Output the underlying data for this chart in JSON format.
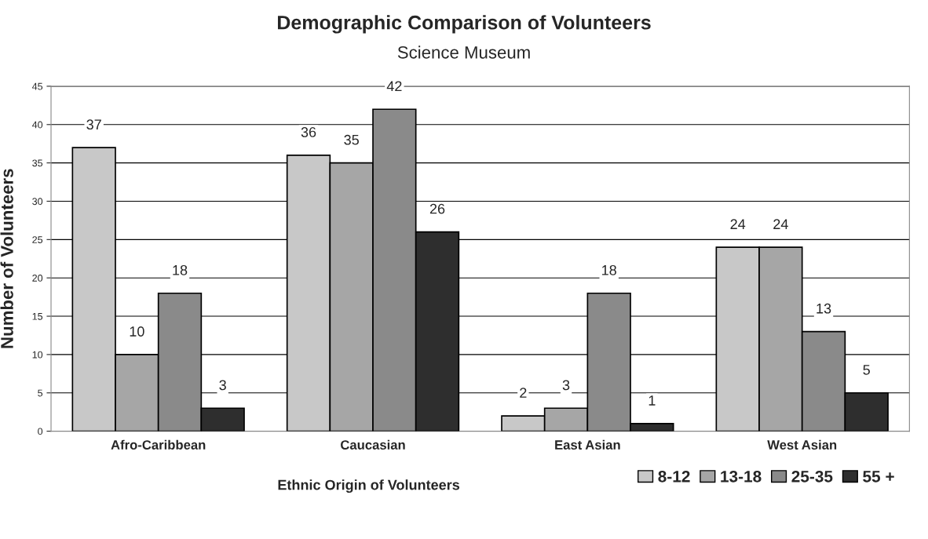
{
  "chart_data": {
    "type": "bar",
    "title": "Demographic Comparison of Volunteers",
    "subtitle": "Science Museum",
    "xlabel": "Ethnic Origin of Volunteers",
    "ylabel": "Number of Volunteers",
    "categories": [
      "Afro-Caribbean",
      "Caucasian",
      "East Asian",
      "West Asian"
    ],
    "series": [
      {
        "name": "8-12",
        "color": "#c8c8c8",
        "values": [
          37,
          36,
          2,
          24
        ]
      },
      {
        "name": "13-18",
        "color": "#a6a6a6",
        "values": [
          10,
          35,
          3,
          24
        ]
      },
      {
        "name": "25-35",
        "color": "#8a8a8a",
        "values": [
          18,
          42,
          18,
          13
        ]
      },
      {
        "name": "55 +",
        "color": "#2e2e2e",
        "values": [
          3,
          26,
          1,
          5
        ]
      }
    ],
    "ylim": [
      0,
      45
    ],
    "yticks": [
      0,
      5,
      10,
      15,
      20,
      25,
      30,
      35,
      40,
      45
    ],
    "grid": "y",
    "legend": "bottom right",
    "data_labels": true
  }
}
